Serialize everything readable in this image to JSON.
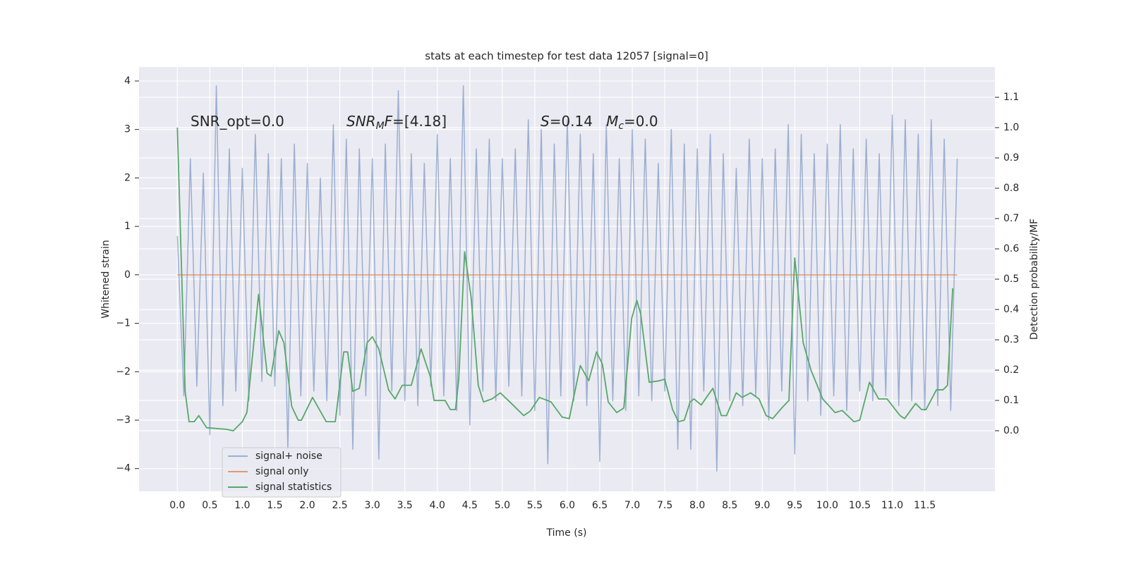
{
  "chart_data": {
    "type": "line",
    "title": "stats at each timestep for test data 12057 [signal=0]",
    "x_label": "Time (s)",
    "y_label": "Whitened strain",
    "y2_label": "Detection probability/MF",
    "background": "#eaeaf2",
    "grid": true,
    "legend": "lower left",
    "xlim": [
      -0.59,
      12.58
    ],
    "ylim": [
      -4.47,
      4.29
    ],
    "y2lim": [
      -0.2,
      1.2
    ],
    "xticks": [
      {
        "value": 0,
        "label": "0.0"
      },
      {
        "value": 0.5,
        "label": "0.5"
      },
      {
        "value": 1,
        "label": "1.0"
      },
      {
        "value": 1.5,
        "label": "1.5"
      },
      {
        "value": 2,
        "label": "2.0"
      },
      {
        "value": 2.5,
        "label": "2.5"
      },
      {
        "value": 3,
        "label": "3.0"
      },
      {
        "value": 3.5,
        "label": "3.5"
      },
      {
        "value": 4,
        "label": "4.0"
      },
      {
        "value": 4.5,
        "label": "4.5"
      },
      {
        "value": 5,
        "label": "5.0"
      },
      {
        "value": 5.5,
        "label": "5.5"
      },
      {
        "value": 6,
        "label": "6.0"
      },
      {
        "value": 6.5,
        "label": "6.5"
      },
      {
        "value": 7,
        "label": "7.0"
      },
      {
        "value": 7.5,
        "label": "7.5"
      },
      {
        "value": 8,
        "label": "8.0"
      },
      {
        "value": 8.5,
        "label": "8.5"
      },
      {
        "value": 9,
        "label": "9.0"
      },
      {
        "value": 9.5,
        "label": "9.5"
      },
      {
        "value": 10,
        "label": "10.0"
      },
      {
        "value": 10.5,
        "label": "10.5"
      },
      {
        "value": 11,
        "label": "11.0"
      },
      {
        "value": 11.5,
        "label": "11.5"
      }
    ],
    "yticks": [
      {
        "value": -4,
        "label": "−4"
      },
      {
        "value": -3,
        "label": "−3"
      },
      {
        "value": -2,
        "label": "−2"
      },
      {
        "value": -1,
        "label": "−1"
      },
      0,
      1,
      2,
      3,
      4
    ],
    "y2ticks": [
      {
        "value": 0,
        "label": "0.0"
      },
      {
        "value": 0.1,
        "label": "0.1"
      },
      {
        "value": 0.2,
        "label": "0.2"
      },
      {
        "value": 0.3,
        "label": "0.3"
      },
      {
        "value": 0.4,
        "label": "0.4"
      },
      {
        "value": 0.5,
        "label": "0.5"
      },
      {
        "value": 0.6,
        "label": "0.6"
      },
      {
        "value": 0.7,
        "label": "0.7"
      },
      {
        "value": 0.8,
        "label": "0.8"
      },
      {
        "value": 0.9,
        "label": "0.9"
      },
      {
        "value": 1,
        "label": "1.0"
      },
      {
        "value": 1.1,
        "label": "1.1"
      }
    ],
    "annotations": [
      [
        {
          "t": "SNR_opt=0.0"
        }
      ],
      [
        {
          "t": "SNR",
          "italic": true
        },
        {
          "t": "M",
          "italic": true,
          "sub": true
        },
        {
          "t": "F",
          "italic": true
        },
        {
          "t": "=[4.18]"
        }
      ],
      [
        {
          "t": "S",
          "italic": true
        },
        {
          "t": "=0.14   "
        },
        {
          "t": "M",
          "italic": true
        },
        {
          "t": "c",
          "italic": true,
          "sub": true
        },
        {
          "t": "=0.0"
        }
      ]
    ],
    "series": [
      {
        "name": "signal+ noise",
        "color": "#4c72b0",
        "alpha": 0.5,
        "x": [
          0.0,
          0.1,
          0.2,
          0.3,
          0.4,
          0.5,
          0.6,
          0.7,
          0.8,
          0.9,
          1.0,
          1.1,
          1.2,
          1.3,
          1.4,
          1.5,
          1.6,
          1.7,
          1.8,
          1.9,
          2.0,
          2.1,
          2.2,
          2.3,
          2.4,
          2.5,
          2.6,
          2.7,
          2.8,
          2.9,
          3.0,
          3.1,
          3.2,
          3.3,
          3.4,
          3.5,
          3.6,
          3.7,
          3.8,
          3.9,
          4.0,
          4.1,
          4.2,
          4.3,
          4.4,
          4.5,
          4.6,
          4.7,
          4.8,
          4.9,
          5.0,
          5.1,
          5.2,
          5.3,
          5.4,
          5.5,
          5.6,
          5.7,
          5.8,
          5.9,
          6.0,
          6.1,
          6.2,
          6.3,
          6.4,
          6.5,
          6.6,
          6.7,
          6.8,
          6.9,
          7.0,
          7.1,
          7.2,
          7.3,
          7.4,
          7.5,
          7.6,
          7.7,
          7.8,
          7.9,
          8.0,
          8.1,
          8.2,
          8.3,
          8.4,
          8.5,
          8.6,
          8.7,
          8.8,
          8.9,
          9.0,
          9.1,
          9.2,
          9.3,
          9.4,
          9.5,
          9.6,
          9.7,
          9.8,
          9.9,
          10.0,
          10.1,
          10.2,
          10.3,
          10.4,
          10.5,
          10.6,
          10.7,
          10.8,
          10.9,
          11.0,
          11.1,
          11.2,
          11.3,
          11.4,
          11.5,
          11.6,
          11.7,
          11.8,
          11.9,
          12.0
        ],
        "values": [
          0.8,
          -2.5,
          2.4,
          -2.3,
          2.1,
          -3.3,
          3.9,
          -2.7,
          2.6,
          -2.4,
          2.2,
          -2.6,
          2.9,
          -2.2,
          2.5,
          -2.3,
          2.4,
          -3.6,
          2.7,
          -2.5,
          2.3,
          -2.4,
          2.0,
          -2.6,
          3.1,
          -2.9,
          2.8,
          -3.6,
          2.6,
          -2.5,
          2.4,
          -3.8,
          2.7,
          -2.4,
          3.8,
          -2.6,
          2.5,
          -2.7,
          2.3,
          -2.3,
          2.9,
          -2.5,
          2.4,
          -2.8,
          3.9,
          -3.1,
          2.6,
          -2.4,
          2.8,
          -2.6,
          2.4,
          -2.3,
          2.6,
          -2.5,
          3.2,
          -2.8,
          3.0,
          -3.9,
          2.7,
          -2.5,
          3.2,
          -2.6,
          2.9,
          -2.7,
          2.5,
          -3.85,
          3.1,
          -2.6,
          2.4,
          -2.8,
          3.0,
          -2.5,
          2.8,
          -2.6,
          2.3,
          -2.4,
          3.0,
          -3.6,
          2.7,
          -3.6,
          2.6,
          -2.4,
          2.9,
          -4.05,
          2.5,
          -2.6,
          2.2,
          -2.7,
          2.8,
          -2.5,
          2.4,
          -3.0,
          2.6,
          -2.4,
          3.1,
          -3.7,
          2.9,
          -2.6,
          2.5,
          -2.9,
          2.7,
          -2.5,
          3.1,
          -2.8,
          2.6,
          -2.4,
          2.8,
          -2.6,
          2.5,
          -2.5,
          3.3,
          -2.7,
          3.2,
          -2.6,
          2.9,
          -2.8,
          3.2,
          -2.7,
          2.8,
          -2.8,
          2.4
        ]
      },
      {
        "name": "signal only",
        "color": "#dd8452",
        "alpha": 0.8,
        "x": [
          0.0,
          12.0
        ],
        "values": [
          0,
          0
        ]
      },
      {
        "name": "signal statistics",
        "color": "#55a868",
        "alpha": 1,
        "axis": "y2",
        "x": [
          0.0,
          0.12,
          0.18,
          0.26,
          0.33,
          0.45,
          0.75,
          0.86,
          1.0,
          1.07,
          1.25,
          1.38,
          1.44,
          1.56,
          1.64,
          1.76,
          1.86,
          1.91,
          2.08,
          2.29,
          2.43,
          2.56,
          2.62,
          2.7,
          2.8,
          2.92,
          3.0,
          3.1,
          3.25,
          3.35,
          3.46,
          3.6,
          3.75,
          3.89,
          3.95,
          4.12,
          4.2,
          4.28,
          4.33,
          4.42,
          4.52,
          4.63,
          4.71,
          4.84,
          4.97,
          5.14,
          5.33,
          5.43,
          5.57,
          5.75,
          5.92,
          6.03,
          6.2,
          6.33,
          6.45,
          6.54,
          6.63,
          6.76,
          6.87,
          6.99,
          7.07,
          7.13,
          7.26,
          7.42,
          7.5,
          7.62,
          7.71,
          7.8,
          7.89,
          7.95,
          8.06,
          8.24,
          8.37,
          8.45,
          8.6,
          8.69,
          8.82,
          8.95,
          9.06,
          9.16,
          9.3,
          9.41,
          9.5,
          9.63,
          9.75,
          9.93,
          10.12,
          10.23,
          10.41,
          10.5,
          10.65,
          10.79,
          10.92,
          11.12,
          11.19,
          11.36,
          11.45,
          11.52,
          11.68,
          11.78,
          11.85,
          11.93
        ],
        "values": [
          1.0,
          0.13,
          0.03,
          0.03,
          0.05,
          0.01,
          0.005,
          0.0,
          0.03,
          0.06,
          0.45,
          0.19,
          0.18,
          0.33,
          0.29,
          0.08,
          0.035,
          0.035,
          0.11,
          0.03,
          0.03,
          0.26,
          0.26,
          0.13,
          0.14,
          0.29,
          0.31,
          0.27,
          0.135,
          0.105,
          0.15,
          0.15,
          0.27,
          0.18,
          0.1,
          0.1,
          0.07,
          0.07,
          0.17,
          0.59,
          0.44,
          0.15,
          0.095,
          0.105,
          0.125,
          0.09,
          0.05,
          0.065,
          0.11,
          0.095,
          0.045,
          0.04,
          0.215,
          0.165,
          0.26,
          0.22,
          0.095,
          0.06,
          0.075,
          0.37,
          0.43,
          0.385,
          0.16,
          0.165,
          0.17,
          0.07,
          0.03,
          0.035,
          0.095,
          0.105,
          0.085,
          0.14,
          0.05,
          0.05,
          0.125,
          0.11,
          0.125,
          0.105,
          0.05,
          0.04,
          0.075,
          0.1,
          0.57,
          0.29,
          0.2,
          0.105,
          0.06,
          0.067,
          0.03,
          0.035,
          0.16,
          0.105,
          0.105,
          0.05,
          0.04,
          0.09,
          0.07,
          0.07,
          0.135,
          0.135,
          0.15,
          0.47
        ]
      }
    ]
  }
}
